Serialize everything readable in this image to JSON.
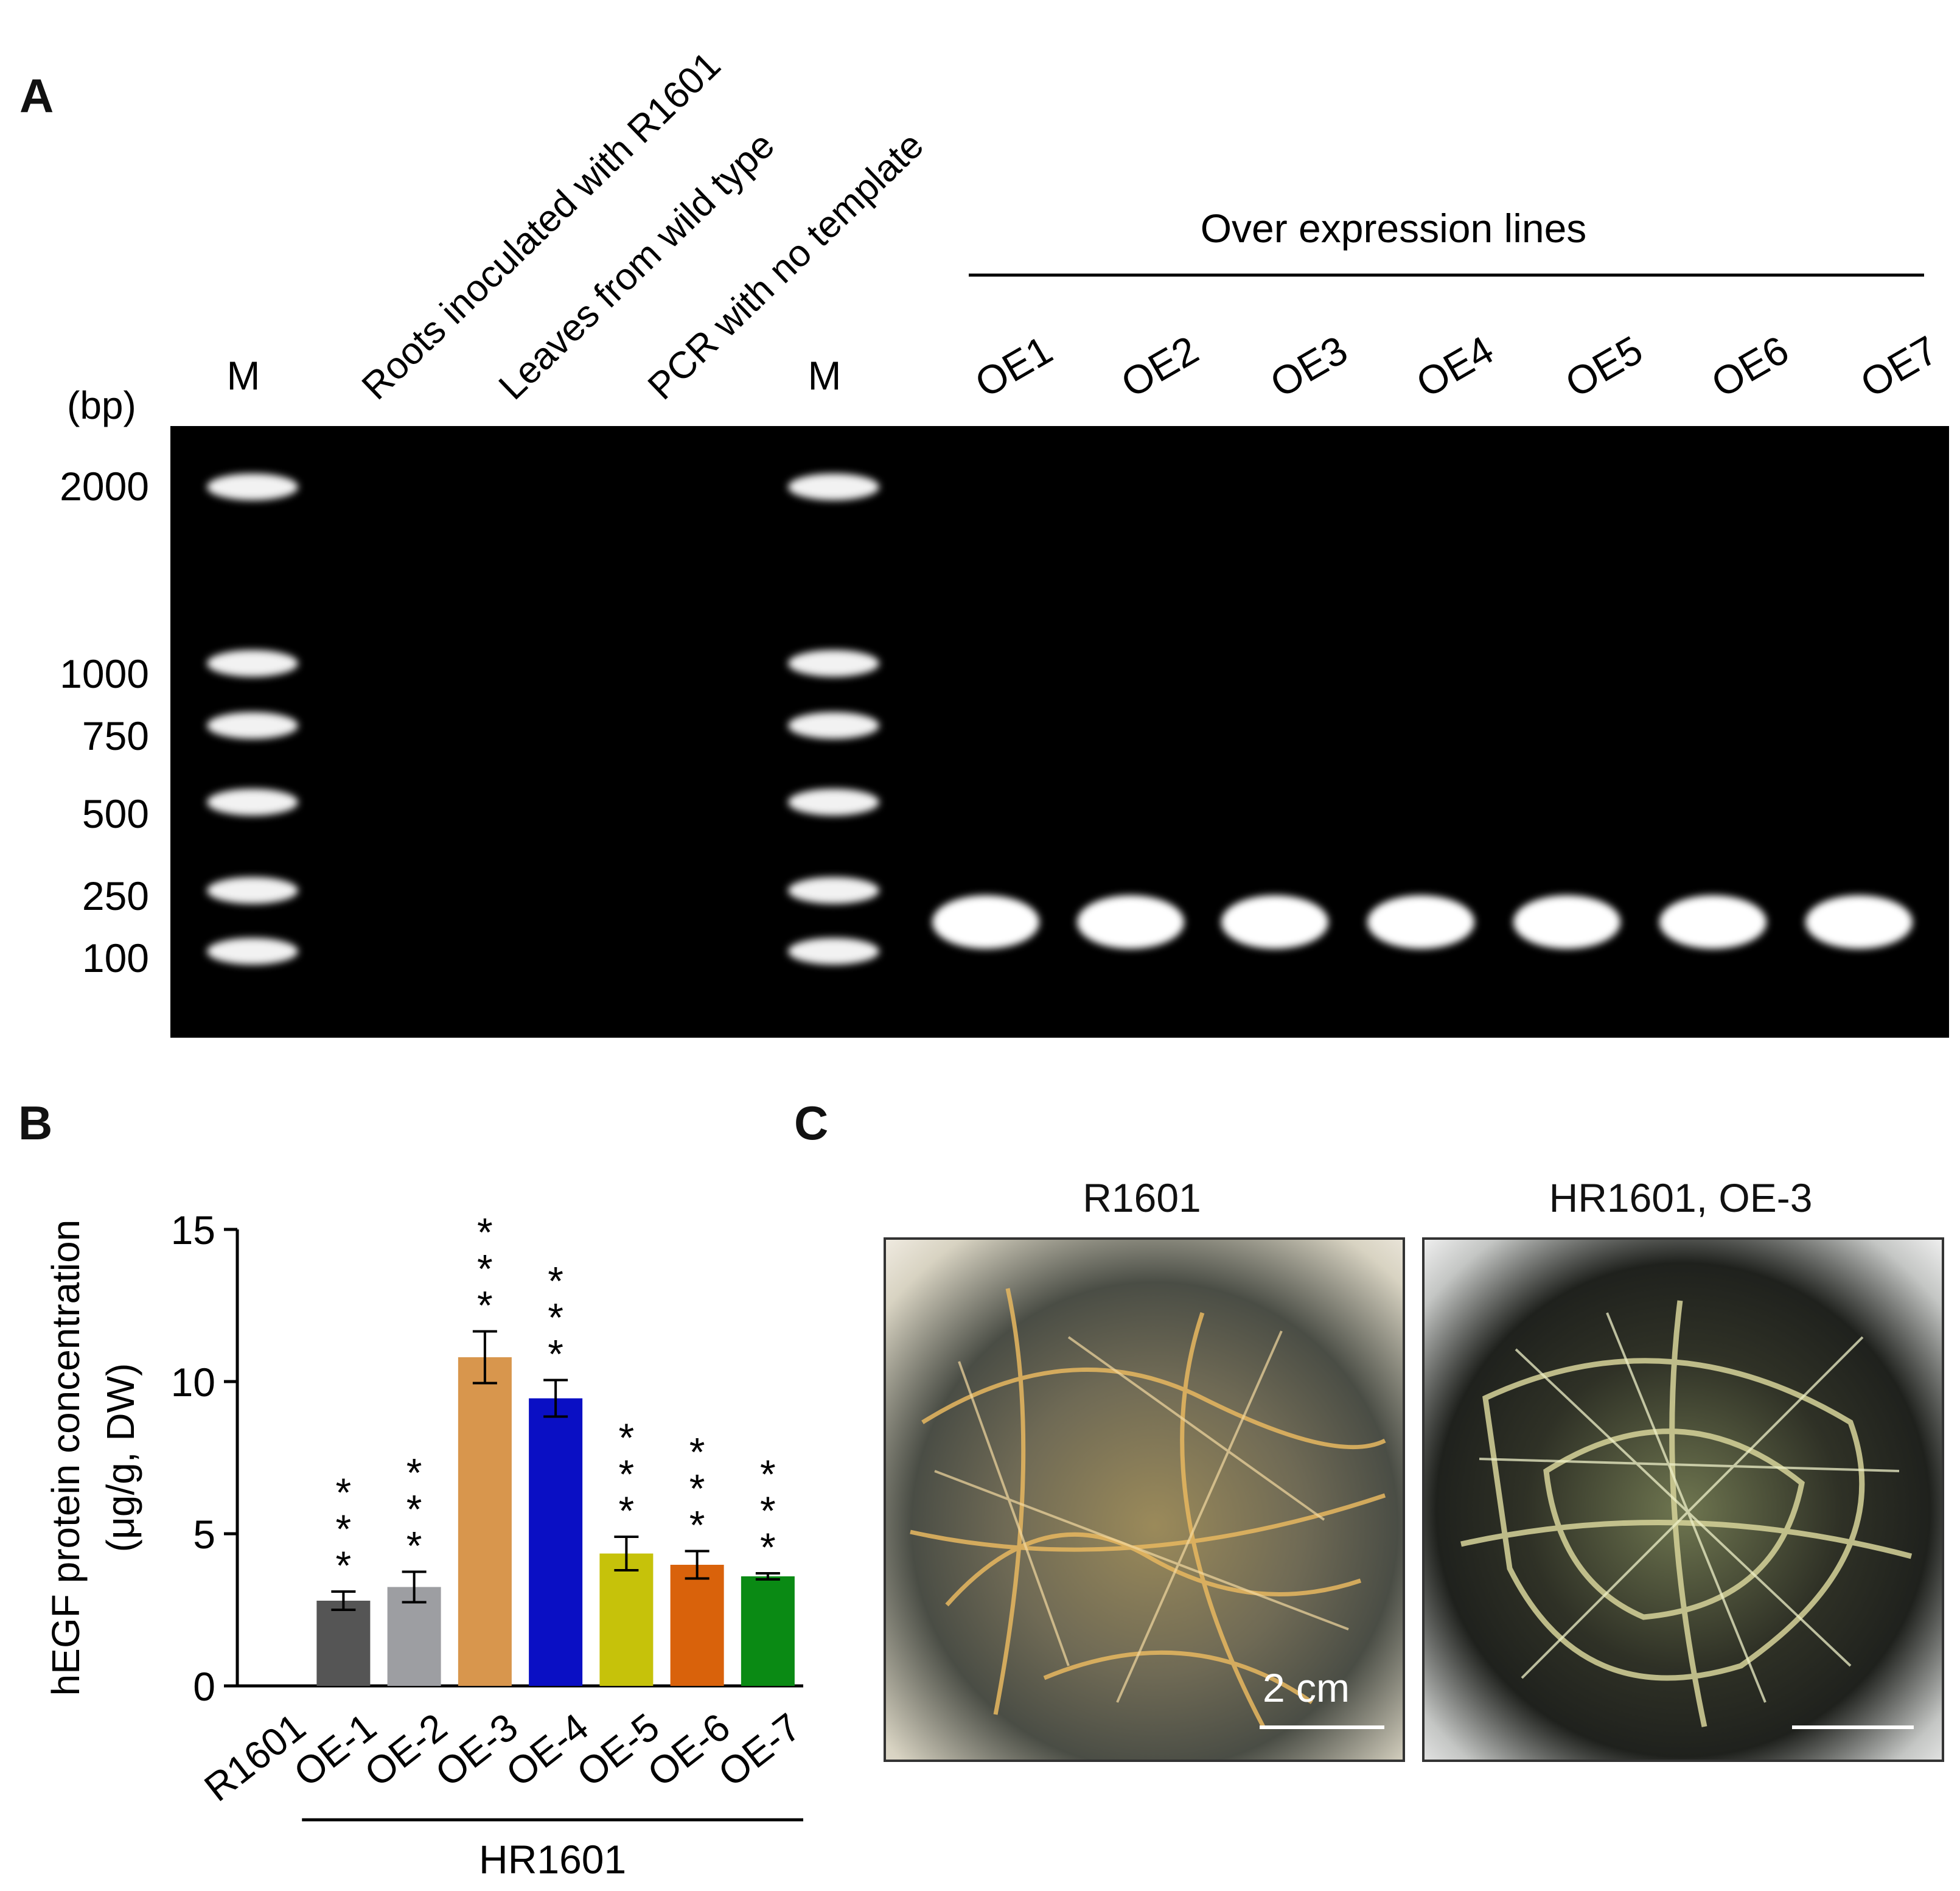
{
  "panels": {
    "a": "A",
    "b": "B",
    "c": "C"
  },
  "gel": {
    "bp_label": "(bp)",
    "marker_label": "M",
    "lane_labels_rotated": [
      "Roots inoculated with R1601",
      "Leaves from wild type",
      "PCR with no template"
    ],
    "group_label": "Over expression lines",
    "oe_lanes": [
      "OE1",
      "OE2",
      "OE3",
      "OE4",
      "OE5",
      "OE6",
      "OE7"
    ],
    "ladder_bp": [
      "2000",
      "1000",
      "750",
      "500",
      "250",
      "100"
    ],
    "band_bp": 250
  },
  "chart_data": {
    "type": "bar",
    "categories": [
      "R1601",
      "OE-1",
      "OE-2",
      "OE-3",
      "OE-4",
      "OE-5",
      "OE-6",
      "OE-7"
    ],
    "values": [
      0,
      2.8,
      3.25,
      10.8,
      9.45,
      4.35,
      3.98,
      3.6
    ],
    "errors": [
      0,
      0.3,
      0.5,
      0.85,
      0.6,
      0.55,
      0.45,
      0.1
    ],
    "colors": [
      "#ffffff",
      "#555555",
      "#9d9ea2",
      "#d8964d",
      "#0a0fc4",
      "#c6c20a",
      "#d9620b",
      "#0a8a14"
    ],
    "significance": [
      "",
      "* * *",
      "* * *",
      "* * *",
      "* * *",
      "* * *",
      "* * *",
      "* * *"
    ],
    "ylabel_line1": "hEGF protein concentration",
    "ylabel_line2": "(μg/g, DW)",
    "yticks": [
      "0",
      "5",
      "10",
      "15"
    ],
    "ylim": [
      0,
      15
    ],
    "group_label": "HR1601"
  },
  "photos": {
    "left_caption": "R1601",
    "right_caption": "HR1601, OE-3",
    "scale_label": "2 cm"
  }
}
